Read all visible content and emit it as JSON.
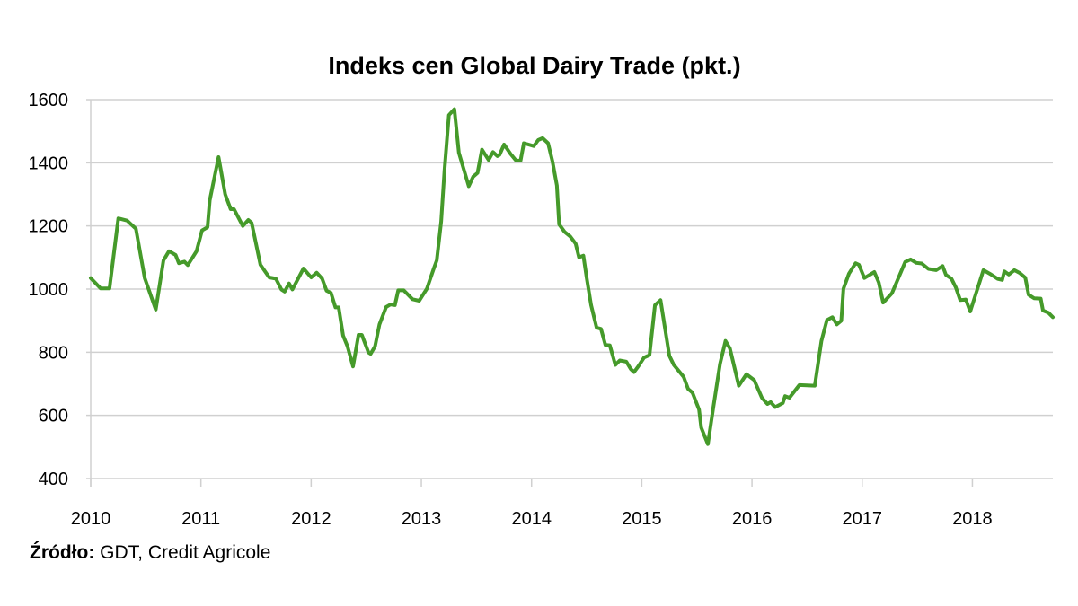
{
  "chart_data": {
    "type": "line",
    "title": "Indeks cen Global Dairy Trade (pkt.)",
    "xlabel": "",
    "ylabel": "",
    "ylim": [
      400,
      1600
    ],
    "xlim": [
      2010,
      2018.73
    ],
    "yticks": [
      400,
      600,
      800,
      1000,
      1200,
      1400,
      1600
    ],
    "xticks": [
      2010,
      2011,
      2012,
      2013,
      2014,
      2015,
      2016,
      2017,
      2018
    ],
    "grid": "horizontal",
    "color": "#459a2a",
    "series": [
      {
        "name": "GDT",
        "points": [
          [
            2010.0,
            1035
          ],
          [
            2010.09,
            1002
          ],
          [
            2010.17,
            1002
          ],
          [
            2010.25,
            1224
          ],
          [
            2010.33,
            1217
          ],
          [
            2010.41,
            1191
          ],
          [
            2010.49,
            1035
          ],
          [
            2010.59,
            935
          ],
          [
            2010.66,
            1091
          ],
          [
            2010.71,
            1120
          ],
          [
            2010.77,
            1108
          ],
          [
            2010.8,
            1082
          ],
          [
            2010.85,
            1087
          ],
          [
            2010.88,
            1076
          ],
          [
            2010.96,
            1120
          ],
          [
            2011.01,
            1186
          ],
          [
            2011.06,
            1196
          ],
          [
            2011.08,
            1281
          ],
          [
            2011.16,
            1418
          ],
          [
            2011.22,
            1300
          ],
          [
            2011.27,
            1253
          ],
          [
            2011.3,
            1253
          ],
          [
            2011.38,
            1200
          ],
          [
            2011.43,
            1219
          ],
          [
            2011.46,
            1210
          ],
          [
            2011.54,
            1077
          ],
          [
            2011.62,
            1037
          ],
          [
            2011.68,
            1033
          ],
          [
            2011.73,
            999
          ],
          [
            2011.76,
            992
          ],
          [
            2011.8,
            1018
          ],
          [
            2011.83,
            999
          ],
          [
            2011.93,
            1065
          ],
          [
            2012.0,
            1037
          ],
          [
            2012.05,
            1052
          ],
          [
            2012.1,
            1033
          ],
          [
            2012.14,
            995
          ],
          [
            2012.18,
            988
          ],
          [
            2012.22,
            942
          ],
          [
            2012.25,
            942
          ],
          [
            2012.29,
            853
          ],
          [
            2012.33,
            819
          ],
          [
            2012.38,
            755
          ],
          [
            2012.43,
            855
          ],
          [
            2012.46,
            855
          ],
          [
            2012.52,
            799
          ],
          [
            2012.54,
            795
          ],
          [
            2012.58,
            819
          ],
          [
            2012.62,
            888
          ],
          [
            2012.68,
            943
          ],
          [
            2012.72,
            951
          ],
          [
            2012.76,
            949
          ],
          [
            2012.79,
            996
          ],
          [
            2012.84,
            996
          ],
          [
            2012.92,
            968
          ],
          [
            2012.98,
            963
          ],
          [
            2013.05,
            1001
          ],
          [
            2013.11,
            1062
          ],
          [
            2013.14,
            1091
          ],
          [
            2013.18,
            1214
          ],
          [
            2013.21,
            1376
          ],
          [
            2013.25,
            1551
          ],
          [
            2013.3,
            1570
          ],
          [
            2013.34,
            1432
          ],
          [
            2013.43,
            1326
          ],
          [
            2013.47,
            1356
          ],
          [
            2013.51,
            1368
          ],
          [
            2013.55,
            1442
          ],
          [
            2013.61,
            1409
          ],
          [
            2013.65,
            1434
          ],
          [
            2013.69,
            1421
          ],
          [
            2013.71,
            1425
          ],
          [
            2013.75,
            1458
          ],
          [
            2013.81,
            1428
          ],
          [
            2013.86,
            1407
          ],
          [
            2013.9,
            1407
          ],
          [
            2013.93,
            1462
          ],
          [
            2014.02,
            1453
          ],
          [
            2014.06,
            1472
          ],
          [
            2014.1,
            1478
          ],
          [
            2014.15,
            1462
          ],
          [
            2014.19,
            1404
          ],
          [
            2014.23,
            1328
          ],
          [
            2014.25,
            1205
          ],
          [
            2014.3,
            1181
          ],
          [
            2014.35,
            1167
          ],
          [
            2014.4,
            1144
          ],
          [
            2014.43,
            1101
          ],
          [
            2014.47,
            1106
          ],
          [
            2014.5,
            1035
          ],
          [
            2014.54,
            949
          ],
          [
            2014.59,
            878
          ],
          [
            2014.63,
            874
          ],
          [
            2014.67,
            823
          ],
          [
            2014.71,
            822
          ],
          [
            2014.76,
            760
          ],
          [
            2014.8,
            774
          ],
          [
            2014.86,
            770
          ],
          [
            2014.9,
            747
          ],
          [
            2014.93,
            737
          ],
          [
            2014.97,
            756
          ],
          [
            2015.02,
            783
          ],
          [
            2015.07,
            791
          ],
          [
            2015.12,
            949
          ],
          [
            2015.17,
            965
          ],
          [
            2015.25,
            789
          ],
          [
            2015.29,
            760
          ],
          [
            2015.38,
            722
          ],
          [
            2015.42,
            684
          ],
          [
            2015.46,
            672
          ],
          [
            2015.52,
            618
          ],
          [
            2015.54,
            561
          ],
          [
            2015.6,
            509
          ],
          [
            2015.65,
            626
          ],
          [
            2015.71,
            763
          ],
          [
            2015.76,
            836
          ],
          [
            2015.8,
            812
          ],
          [
            2015.88,
            694
          ],
          [
            2015.95,
            730
          ],
          [
            2016.02,
            712
          ],
          [
            2016.09,
            656
          ],
          [
            2016.14,
            636
          ],
          [
            2016.17,
            642
          ],
          [
            2016.21,
            626
          ],
          [
            2016.28,
            639
          ],
          [
            2016.3,
            661
          ],
          [
            2016.34,
            656
          ],
          [
            2016.43,
            696
          ],
          [
            2016.57,
            694
          ],
          [
            2016.63,
            836
          ],
          [
            2016.68,
            902
          ],
          [
            2016.73,
            911
          ],
          [
            2016.77,
            888
          ],
          [
            2016.81,
            900
          ],
          [
            2016.83,
            1001
          ],
          [
            2016.88,
            1049
          ],
          [
            2016.94,
            1082
          ],
          [
            2016.97,
            1077
          ],
          [
            2017.02,
            1035
          ],
          [
            2017.11,
            1054
          ],
          [
            2017.15,
            1021
          ],
          [
            2017.19,
            957
          ],
          [
            2017.27,
            987
          ],
          [
            2017.39,
            1086
          ],
          [
            2017.44,
            1094
          ],
          [
            2017.49,
            1083
          ],
          [
            2017.54,
            1081
          ],
          [
            2017.6,
            1064
          ],
          [
            2017.67,
            1060
          ],
          [
            2017.73,
            1073
          ],
          [
            2017.76,
            1045
          ],
          [
            2017.81,
            1033
          ],
          [
            2017.85,
            1005
          ],
          [
            2017.89,
            965
          ],
          [
            2017.94,
            967
          ],
          [
            2017.98,
            929
          ],
          [
            2018.04,
            995
          ],
          [
            2018.1,
            1060
          ],
          [
            2018.17,
            1046
          ],
          [
            2018.23,
            1032
          ],
          [
            2018.27,
            1029
          ],
          [
            2018.29,
            1056
          ],
          [
            2018.33,
            1046
          ],
          [
            2018.38,
            1060
          ],
          [
            2018.43,
            1051
          ],
          [
            2018.48,
            1036
          ],
          [
            2018.51,
            982
          ],
          [
            2018.56,
            971
          ],
          [
            2018.62,
            970
          ],
          [
            2018.64,
            932
          ],
          [
            2018.69,
            925
          ],
          [
            2018.73,
            911
          ]
        ]
      }
    ]
  },
  "source": {
    "label": "Źródło:",
    "text": " GDT, Credit Agricole"
  }
}
